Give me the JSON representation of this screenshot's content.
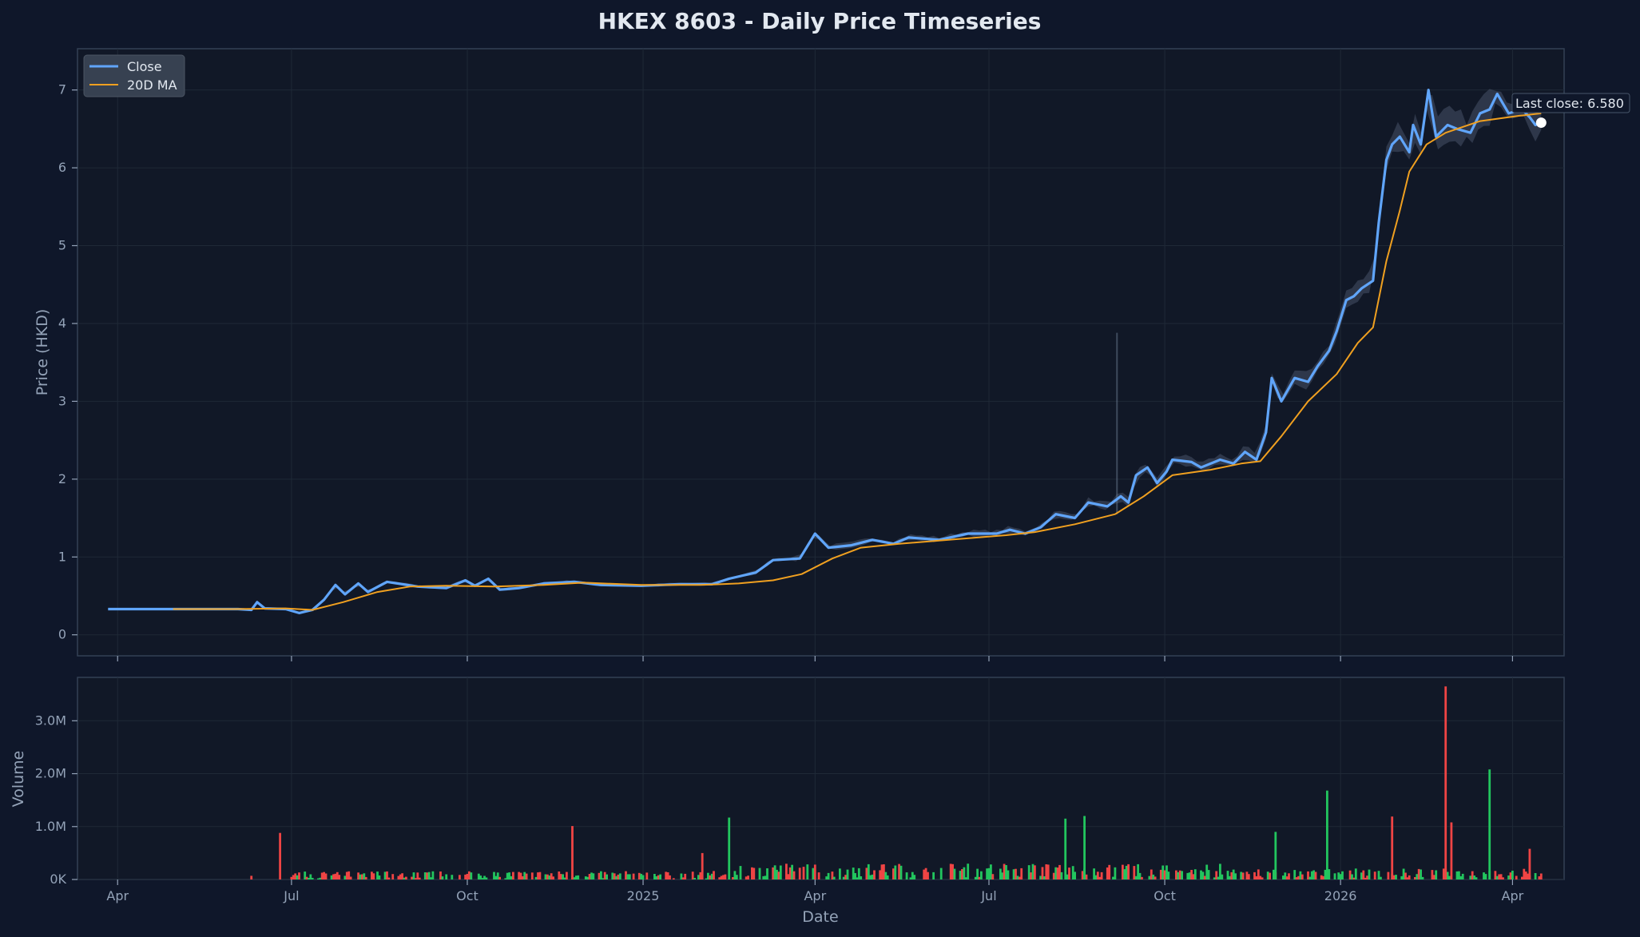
{
  "chart_data": [
    {
      "type": "line",
      "title": "HKEX 8603 - Daily Price Timeseries",
      "ylabel": "Price (HKD)",
      "ylim": [
        -0.27,
        7.53
      ],
      "yticks": [
        0,
        1,
        2,
        3,
        4,
        5,
        6,
        7
      ],
      "xlim": [
        "2024-03-11",
        "2026-04-28"
      ],
      "grid": true,
      "legend_position": "top-left",
      "series": [
        {
          "name": "Close",
          "color": "#60a5fa",
          "points": [
            [
              "2024-03-27",
              0.33
            ],
            [
              "2024-04-15",
              0.33
            ],
            [
              "2024-05-06",
              0.33
            ],
            [
              "2024-05-20",
              0.33
            ],
            [
              "2024-06-03",
              0.33
            ],
            [
              "2024-06-10",
              0.32
            ],
            [
              "2024-06-13",
              0.42
            ],
            [
              "2024-06-17",
              0.34
            ],
            [
              "2024-06-28",
              0.33
            ],
            [
              "2024-07-05",
              0.28
            ],
            [
              "2024-07-12",
              0.32
            ],
            [
              "2024-07-18",
              0.45
            ],
            [
              "2024-07-24",
              0.64
            ],
            [
              "2024-07-29",
              0.52
            ],
            [
              "2024-08-05",
              0.66
            ],
            [
              "2024-08-10",
              0.55
            ],
            [
              "2024-08-20",
              0.68
            ],
            [
              "2024-09-05",
              0.62
            ],
            [
              "2024-09-20",
              0.6
            ],
            [
              "2024-09-30",
              0.7
            ],
            [
              "2024-10-05",
              0.63
            ],
            [
              "2024-10-12",
              0.72
            ],
            [
              "2024-10-18",
              0.58
            ],
            [
              "2024-10-28",
              0.6
            ],
            [
              "2024-11-10",
              0.66
            ],
            [
              "2024-11-26",
              0.68
            ],
            [
              "2024-12-10",
              0.64
            ],
            [
              "2024-12-31",
              0.63
            ],
            [
              "2025-01-20",
              0.65
            ],
            [
              "2025-02-06",
              0.65
            ],
            [
              "2025-02-15",
              0.72
            ],
            [
              "2025-03-01",
              0.8
            ],
            [
              "2025-03-10",
              0.96
            ],
            [
              "2025-03-24",
              0.98
            ],
            [
              "2025-04-01",
              1.3
            ],
            [
              "2025-04-08",
              1.12
            ],
            [
              "2025-04-20",
              1.15
            ],
            [
              "2025-05-01",
              1.22
            ],
            [
              "2025-05-12",
              1.17
            ],
            [
              "2025-05-20",
              1.25
            ],
            [
              "2025-06-05",
              1.22
            ],
            [
              "2025-06-20",
              1.3
            ],
            [
              "2025-07-05",
              1.3
            ],
            [
              "2025-07-12",
              1.35
            ],
            [
              "2025-07-20",
              1.3
            ],
            [
              "2025-07-28",
              1.38
            ],
            [
              "2025-08-05",
              1.55
            ],
            [
              "2025-08-15",
              1.5
            ],
            [
              "2025-08-22",
              1.7
            ],
            [
              "2025-09-01",
              1.65
            ],
            [
              "2025-09-08",
              1.78
            ],
            [
              "2025-09-12",
              1.7
            ],
            [
              "2025-09-16",
              2.05
            ],
            [
              "2025-09-22",
              2.15
            ],
            [
              "2025-09-27",
              1.95
            ],
            [
              "2025-10-02",
              2.1
            ],
            [
              "2025-10-05",
              2.25
            ],
            [
              "2025-10-15",
              2.22
            ],
            [
              "2025-10-20",
              2.15
            ],
            [
              "2025-10-30",
              2.25
            ],
            [
              "2025-11-06",
              2.2
            ],
            [
              "2025-11-12",
              2.35
            ],
            [
              "2025-11-18",
              2.25
            ],
            [
              "2025-11-23",
              2.6
            ],
            [
              "2025-11-26",
              3.3
            ],
            [
              "2025-12-01",
              3.0
            ],
            [
              "2025-12-08",
              3.3
            ],
            [
              "2025-12-15",
              3.25
            ],
            [
              "2025-12-20",
              3.45
            ],
            [
              "2025-12-26",
              3.65
            ],
            [
              "2025-12-30",
              3.9
            ],
            [
              "2026-01-04",
              4.3
            ],
            [
              "2026-01-08",
              4.35
            ],
            [
              "2026-01-12",
              4.45
            ],
            [
              "2026-01-18",
              4.55
            ],
            [
              "2026-01-21",
              5.3
            ],
            [
              "2026-01-25",
              6.1
            ],
            [
              "2026-01-28",
              6.3
            ],
            [
              "2026-02-01",
              6.4
            ],
            [
              "2026-02-06",
              6.2
            ],
            [
              "2026-02-08",
              6.55
            ],
            [
              "2026-02-12",
              6.3
            ],
            [
              "2026-02-16",
              7.0
            ],
            [
              "2026-02-20",
              6.4
            ],
            [
              "2026-02-26",
              6.55
            ],
            [
              "2026-03-03",
              6.5
            ],
            [
              "2026-03-10",
              6.45
            ],
            [
              "2026-03-15",
              6.7
            ],
            [
              "2026-03-20",
              6.75
            ],
            [
              "2026-03-24",
              6.95
            ],
            [
              "2026-03-30",
              6.7
            ],
            [
              "2026-04-06",
              6.75
            ],
            [
              "2026-04-10",
              6.65
            ],
            [
              "2026-04-13",
              6.55
            ],
            [
              "2026-04-16",
              6.58
            ]
          ]
        },
        {
          "name": "20D MA",
          "color": "#f0a020",
          "points": [
            [
              "2024-04-30",
              0.33
            ],
            [
              "2024-06-01",
              0.33
            ],
            [
              "2024-06-28",
              0.34
            ],
            [
              "2024-07-12",
              0.32
            ],
            [
              "2024-07-28",
              0.42
            ],
            [
              "2024-08-15",
              0.55
            ],
            [
              "2024-09-01",
              0.62
            ],
            [
              "2024-09-20",
              0.63
            ],
            [
              "2024-10-15",
              0.62
            ],
            [
              "2024-11-10",
              0.64
            ],
            [
              "2024-12-01",
              0.67
            ],
            [
              "2024-12-31",
              0.64
            ],
            [
              "2025-01-31",
              0.64
            ],
            [
              "2025-02-20",
              0.66
            ],
            [
              "2025-03-10",
              0.7
            ],
            [
              "2025-03-25",
              0.78
            ],
            [
              "2025-04-10",
              0.98
            ],
            [
              "2025-04-25",
              1.12
            ],
            [
              "2025-05-15",
              1.17
            ],
            [
              "2025-06-10",
              1.22
            ],
            [
              "2025-07-10",
              1.28
            ],
            [
              "2025-07-25",
              1.32
            ],
            [
              "2025-08-15",
              1.42
            ],
            [
              "2025-09-05",
              1.55
            ],
            [
              "2025-09-20",
              1.78
            ],
            [
              "2025-10-05",
              2.05
            ],
            [
              "2025-10-25",
              2.12
            ],
            [
              "2025-11-10",
              2.2
            ],
            [
              "2025-11-20",
              2.23
            ],
            [
              "2025-12-01",
              2.55
            ],
            [
              "2025-12-15",
              3.0
            ],
            [
              "2025-12-30",
              3.35
            ],
            [
              "2026-01-10",
              3.75
            ],
            [
              "2026-01-18",
              3.95
            ],
            [
              "2026-01-25",
              4.8
            ],
            [
              "2026-02-01",
              5.45
            ],
            [
              "2026-02-06",
              5.95
            ],
            [
              "2026-02-15",
              6.3
            ],
            [
              "2026-02-25",
              6.45
            ],
            [
              "2026-03-15",
              6.6
            ],
            [
              "2026-04-05",
              6.67
            ],
            [
              "2026-04-16",
              6.7
            ]
          ]
        }
      ],
      "annotation": {
        "text": "Last close: 6.580",
        "date": "2026-04-16",
        "value": 6.58
      }
    },
    {
      "type": "bar",
      "xlabel": "Date",
      "ylabel": "Volume",
      "ylim": [
        0,
        3820000
      ],
      "yticks": [
        0,
        1000000,
        2000000,
        3000000
      ],
      "ytick_labels": [
        "0K",
        "1.0M",
        "2.0M",
        "3.0M"
      ],
      "xticks": [
        "2024-04-01",
        "2024-07-01",
        "2024-10-01",
        "2025-01-01",
        "2025-04-01",
        "2025-07-01",
        "2025-10-01",
        "2026-01-01",
        "2026-04-01"
      ],
      "xtick_labels": [
        "Apr",
        "Jul",
        "Oct",
        "2025",
        "Apr",
        "Jul",
        "Oct",
        "2026",
        "Apr"
      ],
      "colors": {
        "up": "#22c55e",
        "down": "#ef4444"
      },
      "spikes": [
        [
          "2024-06-10",
          70000,
          "down"
        ],
        [
          "2024-06-25",
          880000,
          "down"
        ],
        [
          "2024-11-25",
          1010000,
          "down"
        ],
        [
          "2025-02-01",
          500000,
          "down"
        ],
        [
          "2025-02-15",
          1170000,
          "up"
        ],
        [
          "2025-08-10",
          1150000,
          "up"
        ],
        [
          "2025-08-20",
          1200000,
          "up"
        ],
        [
          "2025-11-28",
          900000,
          "up"
        ],
        [
          "2025-12-25",
          1680000,
          "up"
        ],
        [
          "2026-01-28",
          1190000,
          "down"
        ],
        [
          "2026-02-25",
          3650000,
          "down"
        ],
        [
          "2026-02-28",
          1080000,
          "down"
        ],
        [
          "2026-03-20",
          2080000,
          "up"
        ],
        [
          "2026-04-10",
          580000,
          "down"
        ]
      ]
    }
  ]
}
